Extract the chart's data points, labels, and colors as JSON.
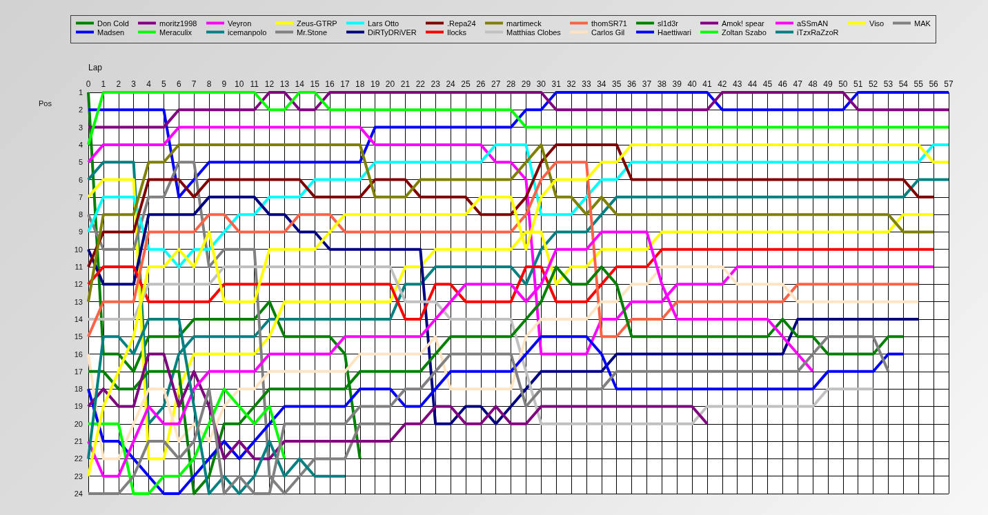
{
  "chart_data": {
    "type": "line",
    "xlabel": "Lap",
    "ylabel": "Pos",
    "x": [
      0,
      1,
      2,
      3,
      4,
      5,
      6,
      7,
      8,
      9,
      10,
      11,
      12,
      13,
      14,
      15,
      16,
      17,
      18,
      19,
      20,
      21,
      22,
      23,
      24,
      25,
      26,
      27,
      28,
      29,
      30,
      31,
      32,
      33,
      34,
      35,
      36,
      37,
      38,
      39,
      40,
      41,
      42,
      43,
      44,
      45,
      46,
      47,
      48,
      49,
      50,
      51,
      52,
      53,
      54,
      55,
      56,
      57
    ],
    "xlim": [
      0,
      57
    ],
    "ylim": [
      24,
      1
    ],
    "xticks": [
      0,
      1,
      2,
      3,
      4,
      5,
      6,
      7,
      8,
      9,
      10,
      11,
      12,
      13,
      14,
      15,
      16,
      17,
      18,
      19,
      20,
      21,
      22,
      23,
      24,
      25,
      26,
      27,
      28,
      29,
      30,
      31,
      32,
      33,
      34,
      35,
      36,
      37,
      38,
      39,
      40,
      41,
      42,
      43,
      44,
      45,
      46,
      47,
      48,
      49,
      50,
      51,
      52,
      53,
      54,
      55,
      56,
      57
    ],
    "yticks": [
      1,
      2,
      3,
      4,
      5,
      6,
      7,
      8,
      9,
      10,
      11,
      12,
      13,
      14,
      15,
      16,
      17,
      18,
      19,
      20,
      21,
      22,
      23,
      24
    ],
    "grid": true,
    "legend": "top",
    "line_style": "solid",
    "series": [
      {
        "name": "Don Cold",
        "color": "#008000",
        "values": [
          1,
          16,
          16,
          17,
          15,
          15,
          15,
          14,
          14,
          14,
          14,
          14,
          13,
          15,
          15,
          15,
          15,
          16,
          22,
          null,
          null,
          null,
          null,
          null,
          null,
          null,
          null,
          null,
          null,
          null,
          null,
          null,
          null,
          null,
          null,
          null,
          null,
          null,
          null,
          null,
          null,
          null,
          null,
          null,
          null,
          null,
          null,
          null,
          null,
          null,
          null,
          null,
          null,
          null,
          null,
          null,
          null,
          null
        ]
      },
      {
        "name": "Madsen",
        "color": "#0000ff",
        "values": [
          2,
          2,
          2,
          2,
          2,
          2,
          7,
          6,
          5,
          5,
          5,
          5,
          5,
          5,
          5,
          5,
          5,
          5,
          5,
          3,
          3,
          3,
          3,
          3,
          3,
          3,
          3,
          3,
          3,
          2,
          2,
          1,
          1,
          1,
          1,
          1,
          1,
          1,
          1,
          1,
          1,
          1,
          2,
          2,
          2,
          2,
          2,
          2,
          2,
          2,
          2,
          1,
          1,
          1,
          1,
          1,
          1,
          1
        ]
      },
      {
        "name": "moritz1998",
        "color": "#800080",
        "values": [
          3,
          3,
          3,
          3,
          3,
          3,
          2,
          2,
          2,
          2,
          2,
          2,
          1,
          1,
          2,
          2,
          1,
          1,
          1,
          1,
          1,
          1,
          1,
          1,
          1,
          1,
          1,
          1,
          1,
          1,
          1,
          2,
          2,
          2,
          2,
          2,
          2,
          2,
          2,
          2,
          2,
          2,
          1,
          1,
          1,
          1,
          1,
          1,
          1,
          1,
          1,
          2,
          2,
          2,
          2,
          2,
          2,
          2
        ]
      },
      {
        "name": "Meraculix",
        "color": "#00ff00",
        "values": [
          4,
          1,
          1,
          1,
          1,
          1,
          1,
          1,
          1,
          1,
          1,
          1,
          2,
          2,
          1,
          1,
          2,
          2,
          2,
          2,
          2,
          2,
          2,
          2,
          2,
          2,
          2,
          2,
          2,
          3,
          3,
          3,
          3,
          3,
          3,
          3,
          3,
          3,
          3,
          3,
          3,
          3,
          3,
          3,
          3,
          3,
          3,
          3,
          3,
          3,
          3,
          3,
          3,
          3,
          3,
          3,
          3,
          3
        ]
      },
      {
        "name": "Veyron",
        "color": "#ff00ff",
        "values": [
          5,
          4,
          4,
          4,
          4,
          4,
          3,
          3,
          3,
          3,
          3,
          3,
          3,
          3,
          3,
          3,
          3,
          3,
          3,
          4,
          4,
          4,
          4,
          4,
          4,
          4,
          4,
          5,
          5,
          6,
          16,
          16,
          16,
          16,
          14,
          14,
          13,
          13,
          13,
          12,
          12,
          12,
          12,
          11,
          11,
          11,
          11,
          11,
          11,
          11,
          11,
          11,
          11,
          11,
          11,
          11,
          11,
          null
        ]
      },
      {
        "name": "icemanpolo",
        "color": "#008080",
        "values": [
          6,
          5,
          5,
          5,
          20,
          19,
          16,
          15,
          15,
          15,
          15,
          15,
          14,
          14,
          14,
          14,
          14,
          14,
          14,
          14,
          14,
          12,
          12,
          11,
          11,
          11,
          11,
          11,
          11,
          12,
          10,
          9,
          9,
          9,
          8,
          7,
          7,
          7,
          7,
          7,
          7,
          7,
          7,
          7,
          7,
          7,
          7,
          7,
          7,
          7,
          7,
          7,
          7,
          7,
          7,
          6,
          6,
          6
        ]
      },
      {
        "name": "Zeus-GTRP",
        "color": "#ffff00",
        "values": [
          7,
          6,
          6,
          6,
          22,
          22,
          18,
          16,
          16,
          16,
          16,
          16,
          15,
          13,
          13,
          13,
          13,
          13,
          13,
          13,
          13,
          11,
          11,
          10,
          10,
          10,
          10,
          10,
          10,
          9,
          9,
          12,
          11,
          11,
          10,
          10,
          10,
          10,
          9,
          9,
          9,
          9,
          9,
          9,
          9,
          9,
          9,
          9,
          9,
          9,
          9,
          9,
          9,
          9,
          8,
          8,
          8,
          null
        ]
      },
      {
        "name": "Mr.Stone",
        "color": "#808080",
        "values": [
          8,
          10,
          10,
          10,
          7,
          7,
          5,
          5,
          11,
          10,
          10,
          10,
          23,
          24,
          23,
          22,
          22,
          22,
          20,
          20,
          20,
          null,
          null,
          null,
          null,
          null,
          null,
          null,
          null,
          null,
          null,
          null,
          null,
          null,
          null,
          null,
          null,
          null,
          null,
          null,
          null,
          null,
          null,
          null,
          null,
          null,
          null,
          null,
          null,
          null,
          null,
          null,
          null,
          null,
          null,
          null,
          null,
          null
        ]
      },
      {
        "name": "Lars Otto",
        "color": "#00ffff",
        "values": [
          9,
          7,
          7,
          7,
          10,
          10,
          11,
          10,
          10,
          9,
          8,
          8,
          7,
          7,
          7,
          6,
          6,
          6,
          6,
          5,
          5,
          5,
          5,
          5,
          5,
          5,
          5,
          4,
          4,
          4,
          8,
          8,
          8,
          7,
          6,
          6,
          5,
          5,
          5,
          5,
          5,
          5,
          5,
          5,
          5,
          5,
          5,
          5,
          5,
          5,
          5,
          5,
          5,
          5,
          5,
          5,
          4,
          4
        ]
      },
      {
        "name": "DiRTyDRiVER",
        "color": "#000080",
        "values": [
          10,
          12,
          12,
          12,
          8,
          8,
          8,
          8,
          7,
          7,
          7,
          7,
          8,
          8,
          9,
          9,
          10,
          10,
          10,
          10,
          10,
          10,
          10,
          20,
          20,
          19,
          19,
          20,
          19,
          18,
          17,
          17,
          17,
          17,
          17,
          16,
          16,
          16,
          16,
          16,
          16,
          16,
          16,
          16,
          16,
          16,
          16,
          14,
          14,
          14,
          14,
          14,
          14,
          14,
          14,
          14,
          null,
          null
        ]
      },
      {
        "name": ".Repa24",
        "color": "#800000",
        "values": [
          11,
          9,
          9,
          9,
          6,
          6,
          6,
          7,
          6,
          6,
          6,
          6,
          6,
          6,
          6,
          7,
          7,
          7,
          7,
          6,
          6,
          6,
          7,
          7,
          7,
          7,
          8,
          8,
          8,
          7,
          5,
          4,
          4,
          4,
          4,
          4,
          6,
          6,
          6,
          6,
          6,
          6,
          6,
          6,
          6,
          6,
          6,
          6,
          6,
          6,
          6,
          6,
          6,
          6,
          6,
          7,
          7,
          null
        ]
      },
      {
        "name": "Ilocks",
        "color": "#ff0000",
        "values": [
          12,
          11,
          11,
          11,
          13,
          13,
          13,
          13,
          13,
          12,
          12,
          12,
          12,
          12,
          12,
          12,
          12,
          12,
          12,
          12,
          12,
          14,
          14,
          12,
          12,
          13,
          13,
          13,
          13,
          11,
          11,
          13,
          13,
          13,
          12,
          11,
          11,
          11,
          10,
          10,
          10,
          10,
          10,
          10,
          10,
          10,
          10,
          10,
          10,
          10,
          10,
          10,
          10,
          10,
          10,
          10,
          10,
          null
        ]
      },
      {
        "name": "martimeck",
        "color": "#808000",
        "values": [
          13,
          8,
          8,
          8,
          5,
          5,
          4,
          4,
          4,
          4,
          4,
          4,
          4,
          4,
          4,
          4,
          4,
          4,
          4,
          7,
          7,
          7,
          6,
          6,
          6,
          6,
          6,
          6,
          6,
          5,
          4,
          7,
          7,
          8,
          7,
          8,
          8,
          8,
          8,
          8,
          8,
          8,
          8,
          8,
          8,
          8,
          8,
          8,
          8,
          8,
          8,
          8,
          8,
          8,
          9,
          9,
          9,
          null
        ]
      },
      {
        "name": "Matthias Clobes",
        "color": "#c0c0c0",
        "values": [
          14,
          14,
          14,
          14,
          12,
          12,
          12,
          12,
          12,
          11,
          11,
          11,
          11,
          11,
          11,
          11,
          11,
          11,
          11,
          11,
          11,
          13,
          13,
          13,
          14,
          14,
          14,
          14,
          14,
          17,
          20,
          20,
          20,
          20,
          20,
          20,
          20,
          20,
          20,
          20,
          20,
          19,
          19,
          19,
          19,
          19,
          19,
          19,
          19,
          18,
          18,
          18,
          18,
          null,
          null,
          null,
          null,
          null
        ]
      },
      {
        "name": "thomSR71",
        "color": "#ff6347",
        "values": [
          15,
          13,
          13,
          13,
          9,
          9,
          9,
          9,
          8,
          8,
          9,
          9,
          9,
          9,
          8,
          8,
          8,
          9,
          9,
          9,
          9,
          9,
          9,
          9,
          9,
          9,
          9,
          9,
          9,
          8,
          6,
          5,
          5,
          5,
          15,
          15,
          14,
          14,
          14,
          13,
          13,
          13,
          13,
          13,
          13,
          13,
          13,
          12,
          12,
          12,
          12,
          12,
          12,
          12,
          12,
          12,
          null,
          null
        ]
      },
      {
        "name": "Carlos Gil",
        "color": "#ffe4c4",
        "values": [
          16,
          22,
          22,
          20,
          18,
          18,
          21,
          20,
          21,
          19,
          18,
          18,
          17,
          17,
          17,
          17,
          17,
          17,
          16,
          16,
          16,
          16,
          16,
          15,
          18,
          18,
          18,
          18,
          18,
          15,
          14,
          14,
          14,
          14,
          13,
          13,
          12,
          12,
          11,
          11,
          11,
          11,
          11,
          12,
          12,
          12,
          12,
          13,
          13,
          13,
          13,
          13,
          13,
          13,
          13,
          13,
          null,
          null
        ]
      },
      {
        "name": "sl1d3r",
        "color": "#008000",
        "values": [
          17,
          17,
          18,
          18,
          17,
          17,
          17,
          24,
          23,
          20,
          20,
          19,
          18,
          18,
          18,
          18,
          18,
          18,
          17,
          17,
          17,
          17,
          17,
          16,
          15,
          15,
          15,
          15,
          15,
          14,
          13,
          11,
          12,
          12,
          11,
          12,
          15,
          15,
          15,
          15,
          15,
          15,
          15,
          15,
          15,
          15,
          14,
          15,
          15,
          16,
          16,
          16,
          16,
          15,
          15,
          null,
          null,
          null
        ]
      },
      {
        "name": "Haettiwari",
        "color": "#0000ff",
        "values": [
          18,
          21,
          21,
          22,
          23,
          24,
          24,
          23,
          22,
          21,
          22,
          21,
          20,
          19,
          19,
          19,
          19,
          19,
          18,
          18,
          18,
          19,
          19,
          18,
          17,
          17,
          17,
          17,
          17,
          16,
          15,
          15,
          15,
          15,
          16,
          18,
          18,
          18,
          18,
          18,
          18,
          18,
          18,
          18,
          18,
          18,
          18,
          18,
          18,
          17,
          17,
          17,
          17,
          16,
          16,
          null,
          null,
          null
        ]
      },
      {
        "name": "Amok! spear",
        "color": "#800080",
        "values": [
          19,
          18,
          19,
          19,
          16,
          16,
          19,
          17,
          19,
          22,
          21,
          22,
          22,
          21,
          21,
          21,
          21,
          21,
          21,
          21,
          21,
          20,
          20,
          19,
          19,
          20,
          20,
          19,
          20,
          20,
          19,
          19,
          19,
          19,
          19,
          19,
          19,
          19,
          19,
          19,
          19,
          20,
          null,
          null,
          null,
          null,
          null,
          null,
          null,
          null,
          null,
          null,
          null,
          null,
          null,
          null,
          null,
          null
        ]
      },
      {
        "name": "Zoltan Szabo",
        "color": "#00ff00",
        "values": [
          20,
          20,
          20,
          24,
          24,
          23,
          23,
          22,
          20,
          18,
          19,
          20,
          19,
          22,
          null,
          null,
          null,
          null,
          null,
          null,
          null,
          null,
          null,
          null,
          null,
          null,
          null,
          null,
          null,
          null,
          null,
          null,
          null,
          null,
          null,
          null,
          null,
          null,
          null,
          null,
          null,
          null,
          null,
          null,
          null,
          null,
          null,
          null,
          null,
          null,
          null,
          null,
          null,
          null,
          null,
          null,
          null,
          null
        ]
      },
      {
        "name": "aSSmAN",
        "color": "#ff00ff",
        "values": [
          21,
          23,
          23,
          21,
          19,
          20,
          20,
          18,
          17,
          17,
          17,
          17,
          16,
          16,
          16,
          16,
          16,
          15,
          15,
          15,
          15,
          15,
          15,
          14,
          13,
          12,
          12,
          12,
          12,
          13,
          12,
          10,
          10,
          10,
          9,
          9,
          9,
          9,
          12,
          14,
          14,
          14,
          14,
          14,
          14,
          14,
          15,
          16,
          17,
          null,
          null,
          null,
          null,
          null,
          null,
          null,
          null,
          null
        ]
      },
      {
        "name": "iTzxRaZzoR",
        "color": "#008080",
        "values": [
          22,
          15,
          15,
          16,
          14,
          14,
          14,
          19,
          24,
          23,
          24,
          23,
          21,
          23,
          22,
          23,
          23,
          23,
          null,
          null,
          null,
          null,
          null,
          null,
          null,
          null,
          null,
          null,
          null,
          null,
          null,
          null,
          null,
          null,
          null,
          null,
          null,
          null,
          null,
          null,
          null,
          null,
          null,
          null,
          null,
          null,
          null,
          null,
          null,
          null,
          null,
          null,
          null,
          null,
          null,
          null,
          null,
          null
        ]
      },
      {
        "name": "Viso",
        "color": "#ffff00",
        "values": [
          23,
          19,
          17,
          15,
          11,
          11,
          10,
          11,
          9,
          13,
          13,
          13,
          10,
          10,
          10,
          10,
          9,
          8,
          8,
          8,
          8,
          8,
          8,
          8,
          8,
          8,
          7,
          7,
          7,
          10,
          7,
          6,
          6,
          6,
          5,
          5,
          4,
          4,
          4,
          4,
          4,
          4,
          4,
          4,
          4,
          4,
          4,
          4,
          4,
          4,
          4,
          4,
          4,
          4,
          4,
          4,
          5,
          5
        ]
      },
      {
        "name": "MAK",
        "color": "#808080",
        "values": [
          24,
          24,
          24,
          23,
          21,
          21,
          22,
          21,
          18,
          24,
          23,
          24,
          24,
          20,
          20,
          20,
          20,
          20,
          19,
          19,
          19,
          18,
          18,
          17,
          16,
          16,
          16,
          16,
          16,
          19,
          18,
          18,
          18,
          18,
          18,
          17,
          17,
          17,
          17,
          17,
          17,
          17,
          17,
          17,
          17,
          17,
          17,
          17,
          16,
          15,
          15,
          15,
          15,
          17,
          null,
          null,
          null,
          null
        ]
      }
    ]
  }
}
